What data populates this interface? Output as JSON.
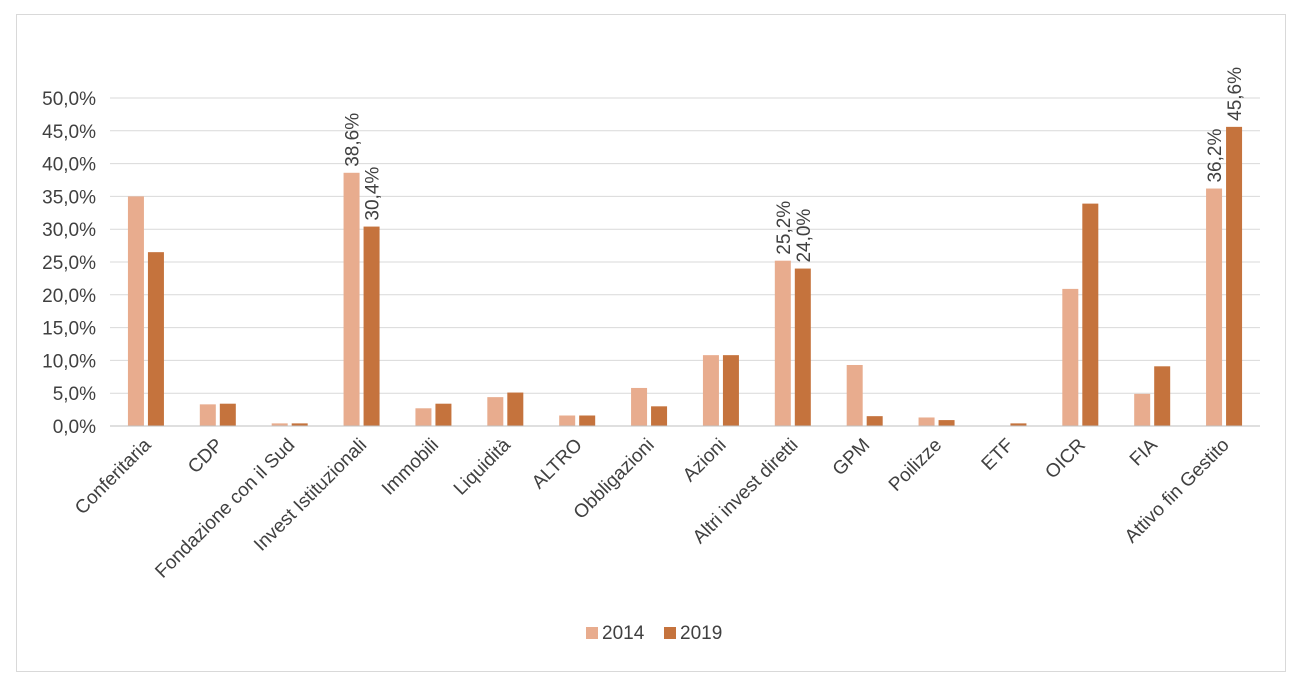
{
  "chart_data": {
    "type": "bar",
    "categories": [
      "Conferitaria",
      "CDP",
      "Fondazione con il Sud",
      "Invest Istituzionali",
      "Immobili",
      "Liquidità",
      "ALTRO",
      "Obbligazioni",
      "Azioni",
      "Altri invest diretti",
      "GPM",
      "Poilizze",
      "ETF",
      "OICR",
      "FIA",
      "Attivo fin Gestito"
    ],
    "series": [
      {
        "name": "2014",
        "color": "#E8AC8E",
        "values": [
          35.0,
          3.3,
          0.4,
          38.6,
          2.7,
          4.4,
          1.6,
          5.8,
          10.8,
          25.2,
          9.3,
          1.3,
          0.0,
          20.9,
          4.9,
          36.2
        ]
      },
      {
        "name": "2019",
        "color": "#C5733D",
        "values": [
          26.5,
          3.4,
          0.4,
          30.4,
          3.4,
          5.1,
          1.6,
          3.0,
          10.8,
          24.0,
          1.5,
          0.9,
          0.4,
          33.9,
          9.1,
          45.6
        ]
      }
    ],
    "data_labels": [
      {
        "category_index": 3,
        "series_index": 0,
        "text": "38,6%"
      },
      {
        "category_index": 3,
        "series_index": 1,
        "text": "30,4%"
      },
      {
        "category_index": 9,
        "series_index": 0,
        "text": "25,2%"
      },
      {
        "category_index": 9,
        "series_index": 1,
        "text": "24,0%"
      },
      {
        "category_index": 15,
        "series_index": 0,
        "text": "36,2%"
      },
      {
        "category_index": 15,
        "series_index": 1,
        "text": "45,6%"
      }
    ],
    "y_ticks": [
      "0,0%",
      "5,0%",
      "10,0%",
      "15,0%",
      "20,0%",
      "25,0%",
      "30,0%",
      "35,0%",
      "40,0%",
      "45,0%",
      "50,0%"
    ],
    "ylim": [
      0,
      50
    ],
    "grid": true,
    "gridline_color": "#d9d9d9",
    "legend_position": "bottom",
    "title": "",
    "xlabel": "",
    "ylabel": ""
  }
}
